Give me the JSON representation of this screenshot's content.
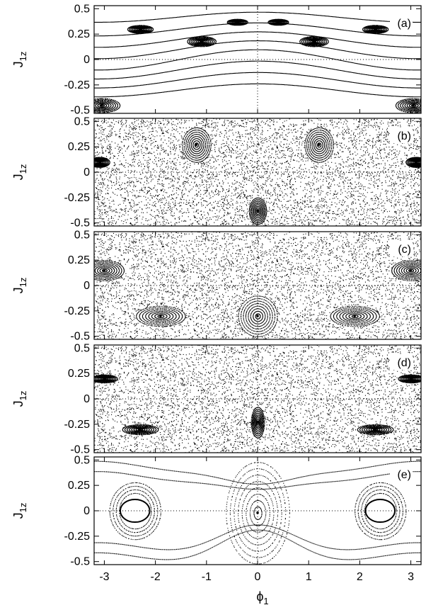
{
  "chart_data": {
    "type": "scatter",
    "description_style": "Poincare surface-of-section plots, five stacked panels sharing the phi_1 axis",
    "shared_xaxis": {
      "label_base": "ϕ",
      "label_sub": "1",
      "xlim": [
        -3.2,
        3.2
      ],
      "ticks": [
        -3,
        -2,
        -1,
        0,
        1,
        2,
        3
      ],
      "tick_labels": [
        "-3",
        "-2",
        "-1",
        "0",
        "1",
        "2",
        "3"
      ]
    },
    "yaxis": {
      "label_base": "J",
      "label_sub": "1z",
      "ylim": [
        -0.53,
        0.53
      ],
      "ticks": [
        0.5,
        0.25,
        0,
        -0.25,
        -0.5
      ],
      "tick_labels": [
        "0.5",
        "0.25",
        "0",
        "-0.25",
        "-0.5"
      ]
    },
    "reference_lines": {
      "x": 0,
      "y": 0,
      "style": "dotted"
    },
    "marker_color": "#000000",
    "panels": [
      {
        "label": "(a)",
        "regime": "regular",
        "features": [
          {
            "kind": "band_curves",
            "amplitude": 0.1,
            "levels": [
              -0.3,
              -0.2,
              -0.1,
              0.0,
              0.1,
              0.2,
              0.3,
              0.42
            ]
          },
          {
            "kind": "island",
            "center": [
              -3.05,
              -0.45
            ],
            "radius": [
              0.35,
              0.07
            ]
          },
          {
            "kind": "island",
            "center": [
              3.05,
              -0.45
            ],
            "radius": [
              0.35,
              0.07
            ]
          },
          {
            "kind": "island",
            "center": [
              -1.1,
              0.18
            ],
            "radius": [
              0.28,
              0.05
            ]
          },
          {
            "kind": "island",
            "center": [
              1.1,
              0.18
            ],
            "radius": [
              0.28,
              0.05
            ]
          },
          {
            "kind": "island",
            "center": [
              -2.3,
              0.3
            ],
            "radius": [
              0.25,
              0.04
            ]
          },
          {
            "kind": "island",
            "center": [
              2.3,
              0.3
            ],
            "radius": [
              0.25,
              0.04
            ]
          },
          {
            "kind": "island",
            "center": [
              -0.4,
              0.37
            ],
            "radius": [
              0.2,
              0.03
            ]
          },
          {
            "kind": "island",
            "center": [
              0.4,
              0.37
            ],
            "radius": [
              0.2,
              0.03
            ]
          }
        ]
      },
      {
        "label": "(b)",
        "regime": "mixed",
        "features": [
          {
            "kind": "chaos",
            "density": 1.0
          },
          {
            "kind": "island",
            "center": [
              -1.2,
              0.27
            ],
            "radius": [
              0.28,
              0.17
            ]
          },
          {
            "kind": "island",
            "center": [
              1.2,
              0.27
            ],
            "radius": [
              0.28,
              0.17
            ]
          },
          {
            "kind": "island",
            "center": [
              0.0,
              -0.38
            ],
            "radius": [
              0.17,
              0.13
            ]
          },
          {
            "kind": "island",
            "center": [
              -3.1,
              0.1
            ],
            "radius": [
              0.2,
              0.05
            ]
          },
          {
            "kind": "island",
            "center": [
              3.1,
              0.1
            ],
            "radius": [
              0.2,
              0.05
            ]
          }
        ]
      },
      {
        "label": "(c)",
        "regime": "mixed",
        "features": [
          {
            "kind": "chaos",
            "density": 0.85
          },
          {
            "kind": "island",
            "center": [
              0.0,
              -0.3
            ],
            "radius": [
              0.38,
              0.2
            ]
          },
          {
            "kind": "island",
            "center": [
              -1.9,
              -0.3
            ],
            "radius": [
              0.48,
              0.1
            ]
          },
          {
            "kind": "island",
            "center": [
              1.9,
              -0.3
            ],
            "radius": [
              0.48,
              0.1
            ]
          },
          {
            "kind": "island",
            "center": [
              -3.0,
              0.15
            ],
            "radius": [
              0.38,
              0.1
            ]
          },
          {
            "kind": "island",
            "center": [
              3.0,
              0.15
            ],
            "radius": [
              0.38,
              0.1
            ]
          }
        ]
      },
      {
        "label": "(d)",
        "regime": "mostly chaotic",
        "features": [
          {
            "kind": "chaos",
            "density": 1.35
          },
          {
            "kind": "island",
            "center": [
              0.0,
              -0.23
            ],
            "radius": [
              0.13,
              0.15
            ]
          },
          {
            "kind": "island",
            "center": [
              -2.3,
              -0.3
            ],
            "radius": [
              0.35,
              0.05
            ]
          },
          {
            "kind": "island",
            "center": [
              2.3,
              -0.3
            ],
            "radius": [
              0.35,
              0.05
            ]
          },
          {
            "kind": "island",
            "center": [
              -3.0,
              0.2
            ],
            "radius": [
              0.25,
              0.04
            ]
          },
          {
            "kind": "island",
            "center": [
              3.0,
              0.2
            ],
            "radius": [
              0.25,
              0.04
            ]
          }
        ]
      },
      {
        "label": "(e)",
        "regime": "regular",
        "features": [
          {
            "kind": "island",
            "center": [
              0.0,
              -0.02
            ],
            "radius": [
              0.62,
              0.5
            ]
          },
          {
            "kind": "island",
            "center": [
              -2.4,
              0.0
            ],
            "radius": [
              0.5,
              0.28
            ],
            "hollow": [
              0.18,
              0.07
            ]
          },
          {
            "kind": "island",
            "center": [
              2.4,
              0.0
            ],
            "radius": [
              0.5,
              0.28
            ],
            "hollow": [
              0.18,
              0.07
            ]
          },
          {
            "kind": "separatrix_curves",
            "levels": [
              -0.45,
              -0.35,
              0.35,
              0.45
            ]
          }
        ]
      }
    ]
  }
}
